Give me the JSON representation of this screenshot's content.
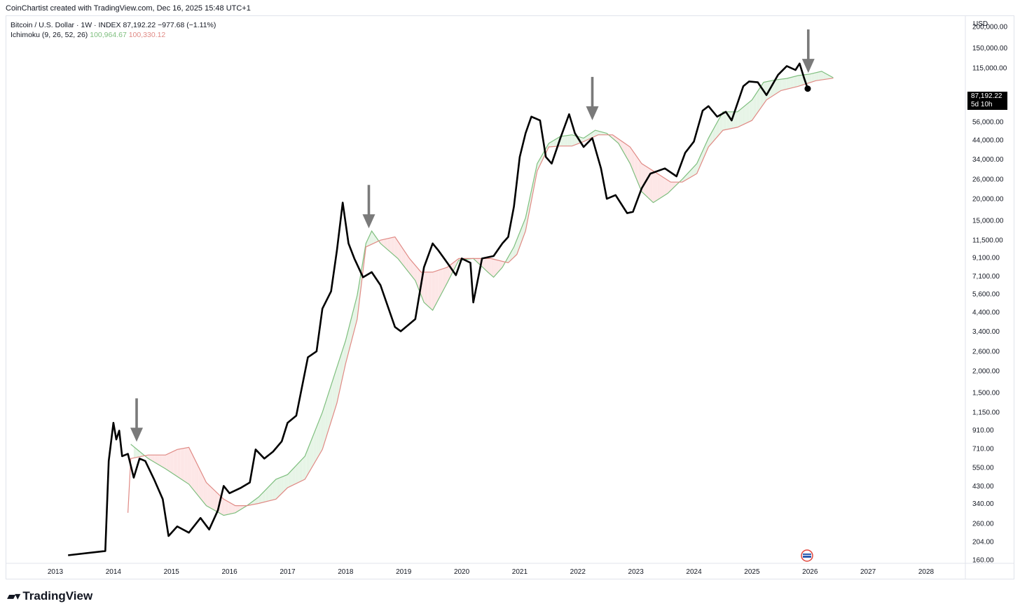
{
  "header": {
    "credit": "CoinChartist created with TradingView.com, Dec 16, 2025 15:48 UTC+1"
  },
  "legend": {
    "symbol_line": "Bitcoin / U.S. Dollar · 1W · INDEX",
    "last": "87,192.22",
    "change": "−977.68 (−1.11%)",
    "indicator": "Ichimoku (9, 26, 52, 26)",
    "span_a_value": "100,964.67",
    "span_b_value": "100,330.12"
  },
  "currency": "USD",
  "price_tag": {
    "price": "87,192.22",
    "countdown": "5d 10h"
  },
  "logo": {
    "text": "TradingView"
  },
  "chart_data": {
    "type": "line",
    "scale": "log",
    "ylim": [
      160,
      200000
    ],
    "xlim": [
      2012.6,
      2028.9
    ],
    "y_ticks": [
      {
        "v": 200000,
        "label": "200,000.00"
      },
      {
        "v": 150000,
        "label": "150,000.00"
      },
      {
        "v": 115000,
        "label": "115,000.00"
      },
      {
        "v": 56000,
        "label": "56,000.00"
      },
      {
        "v": 44000,
        "label": "44,000.00"
      },
      {
        "v": 34000,
        "label": "34,000.00"
      },
      {
        "v": 26000,
        "label": "26,000.00"
      },
      {
        "v": 20000,
        "label": "20,000.00"
      },
      {
        "v": 15000,
        "label": "15,000.00"
      },
      {
        "v": 11500,
        "label": "11,500.00"
      },
      {
        "v": 9100,
        "label": "9,100.00"
      },
      {
        "v": 7100,
        "label": "7,100.00"
      },
      {
        "v": 5600,
        "label": "5,600.00"
      },
      {
        "v": 4400,
        "label": "4,400.00"
      },
      {
        "v": 3400,
        "label": "3,400.00"
      },
      {
        "v": 2600,
        "label": "2,600.00"
      },
      {
        "v": 2000,
        "label": "2,000.00"
      },
      {
        "v": 1500,
        "label": "1,500.00"
      },
      {
        "v": 1150,
        "label": "1,150.00"
      },
      {
        "v": 910,
        "label": "910.00"
      },
      {
        "v": 710,
        "label": "710.00"
      },
      {
        "v": 550,
        "label": "550.00"
      },
      {
        "v": 430,
        "label": "430.00"
      },
      {
        "v": 340,
        "label": "340.00"
      },
      {
        "v": 260,
        "label": "260.00"
      },
      {
        "v": 204,
        "label": "204.00"
      },
      {
        "v": 160,
        "label": "160.00"
      }
    ],
    "x_ticks": [
      "2013",
      "2014",
      "2015",
      "2016",
      "2017",
      "2018",
      "2019",
      "2020",
      "2021",
      "2022",
      "2023",
      "2024",
      "2025",
      "2026",
      "2027",
      "2028"
    ],
    "colors": {
      "price": "#000000",
      "span_a": "#7fbf7f",
      "span_b": "#e08a85",
      "bull_fill": "#e6f4e6",
      "bear_fill": "#fde6e6",
      "arrow": "#7a7a7a"
    },
    "series": [
      {
        "values": [
          [
            2013.22,
            170
          ],
          [
            2013.86,
            180
          ],
          [
            2013.92,
            600
          ],
          [
            2014.0,
            1000
          ],
          [
            2014.05,
            800
          ],
          [
            2014.1,
            900
          ],
          [
            2014.15,
            640
          ],
          [
            2014.25,
            660
          ],
          [
            2014.35,
            480
          ],
          [
            2014.45,
            620
          ],
          [
            2014.55,
            600
          ],
          [
            2014.7,
            470
          ],
          [
            2014.85,
            360
          ],
          [
            2014.95,
            220
          ],
          [
            2015.1,
            250
          ],
          [
            2015.3,
            230
          ],
          [
            2015.5,
            280
          ],
          [
            2015.65,
            240
          ],
          [
            2015.8,
            310
          ],
          [
            2015.9,
            430
          ],
          [
            2016.0,
            390
          ],
          [
            2016.2,
            420
          ],
          [
            2016.35,
            450
          ],
          [
            2016.45,
            700
          ],
          [
            2016.6,
            620
          ],
          [
            2016.75,
            680
          ],
          [
            2016.9,
            780
          ],
          [
            2017.0,
            1000
          ],
          [
            2017.15,
            1100
          ],
          [
            2017.35,
            2400
          ],
          [
            2017.5,
            2600
          ],
          [
            2017.6,
            4600
          ],
          [
            2017.75,
            5800
          ],
          [
            2017.85,
            10000
          ],
          [
            2017.95,
            19000
          ],
          [
            2018.05,
            11000
          ],
          [
            2018.15,
            9000
          ],
          [
            2018.3,
            7000
          ],
          [
            2018.45,
            7500
          ],
          [
            2018.6,
            6300
          ],
          [
            2018.85,
            3600
          ],
          [
            2018.95,
            3400
          ],
          [
            2019.2,
            4000
          ],
          [
            2019.35,
            8000
          ],
          [
            2019.5,
            11000
          ],
          [
            2019.6,
            10000
          ],
          [
            2019.75,
            8500
          ],
          [
            2019.9,
            7200
          ],
          [
            2020.0,
            9000
          ],
          [
            2020.15,
            8500
          ],
          [
            2020.2,
            5000
          ],
          [
            2020.35,
            9000
          ],
          [
            2020.55,
            9300
          ],
          [
            2020.7,
            11000
          ],
          [
            2020.8,
            12000
          ],
          [
            2020.9,
            18000
          ],
          [
            2021.0,
            35000
          ],
          [
            2021.1,
            48000
          ],
          [
            2021.2,
            60000
          ],
          [
            2021.35,
            57000
          ],
          [
            2021.45,
            35000
          ],
          [
            2021.55,
            32000
          ],
          [
            2021.7,
            45000
          ],
          [
            2021.85,
            62000
          ],
          [
            2021.95,
            48000
          ],
          [
            2022.1,
            40000
          ],
          [
            2022.25,
            45000
          ],
          [
            2022.4,
            30000
          ],
          [
            2022.5,
            20000
          ],
          [
            2022.65,
            21000
          ],
          [
            2022.85,
            16500
          ],
          [
            2022.95,
            16800
          ],
          [
            2023.1,
            23000
          ],
          [
            2023.25,
            28000
          ],
          [
            2023.5,
            30000
          ],
          [
            2023.7,
            27000
          ],
          [
            2023.85,
            37000
          ],
          [
            2024.0,
            43000
          ],
          [
            2024.15,
            65000
          ],
          [
            2024.25,
            69000
          ],
          [
            2024.4,
            60000
          ],
          [
            2024.55,
            64000
          ],
          [
            2024.65,
            57000
          ],
          [
            2024.85,
            90000
          ],
          [
            2024.95,
            96000
          ],
          [
            2025.1,
            95000
          ],
          [
            2025.25,
            80000
          ],
          [
            2025.45,
            105000
          ],
          [
            2025.6,
            118000
          ],
          [
            2025.75,
            112000
          ],
          [
            2025.82,
            122000
          ],
          [
            2025.9,
            100000
          ],
          [
            2025.96,
            87192
          ]
        ]
      },
      {
        "name": "100,964.67",
        "values": [
          [
            2014.3,
            750
          ],
          [
            2014.6,
            620
          ],
          [
            2014.9,
            540
          ],
          [
            2015.3,
            440
          ],
          [
            2015.6,
            330
          ],
          [
            2015.9,
            290
          ],
          [
            2016.1,
            300
          ],
          [
            2016.3,
            330
          ],
          [
            2016.5,
            370
          ],
          [
            2016.8,
            470
          ],
          [
            2017.0,
            500
          ],
          [
            2017.3,
            640
          ],
          [
            2017.6,
            1150
          ],
          [
            2017.85,
            2100
          ],
          [
            2018.0,
            3000
          ],
          [
            2018.2,
            5500
          ],
          [
            2018.35,
            11000
          ],
          [
            2018.45,
            13000
          ],
          [
            2018.6,
            11000
          ],
          [
            2018.9,
            9000
          ],
          [
            2019.2,
            6700
          ],
          [
            2019.35,
            5000
          ],
          [
            2019.5,
            4500
          ],
          [
            2019.75,
            6500
          ],
          [
            2019.95,
            8800
          ],
          [
            2020.2,
            9000
          ],
          [
            2020.45,
            7500
          ],
          [
            2020.55,
            7000
          ],
          [
            2020.7,
            8000
          ],
          [
            2020.9,
            10500
          ],
          [
            2021.1,
            15500
          ],
          [
            2021.3,
            32000
          ],
          [
            2021.5,
            42000
          ],
          [
            2021.7,
            46000
          ],
          [
            2021.9,
            47000
          ],
          [
            2022.1,
            45000
          ],
          [
            2022.3,
            50000
          ],
          [
            2022.5,
            48000
          ],
          [
            2022.7,
            42000
          ],
          [
            2022.9,
            32000
          ],
          [
            2023.1,
            22000
          ],
          [
            2023.3,
            19000
          ],
          [
            2023.55,
            21500
          ],
          [
            2023.8,
            26000
          ],
          [
            2024.05,
            32000
          ],
          [
            2024.25,
            45000
          ],
          [
            2024.5,
            64000
          ],
          [
            2024.75,
            64000
          ],
          [
            2025.0,
            75000
          ],
          [
            2025.2,
            95000
          ],
          [
            2025.4,
            98000
          ],
          [
            2025.6,
            100000
          ],
          [
            2025.8,
            104000
          ],
          [
            2026.0,
            106000
          ],
          [
            2026.2,
            110000
          ],
          [
            2026.4,
            100965
          ]
        ]
      },
      {
        "name": "100,330.12",
        "values": [
          [
            2014.25,
            300
          ],
          [
            2014.3,
            620
          ],
          [
            2014.6,
            650
          ],
          [
            2014.9,
            650
          ],
          [
            2015.1,
            700
          ],
          [
            2015.3,
            720
          ],
          [
            2015.6,
            450
          ],
          [
            2015.9,
            360
          ],
          [
            2016.1,
            330
          ],
          [
            2016.3,
            330
          ],
          [
            2016.5,
            340
          ],
          [
            2016.8,
            360
          ],
          [
            2017.0,
            420
          ],
          [
            2017.3,
            470
          ],
          [
            2017.6,
            700
          ],
          [
            2017.85,
            1300
          ],
          [
            2018.0,
            2200
          ],
          [
            2018.2,
            4000
          ],
          [
            2018.35,
            10500
          ],
          [
            2018.6,
            11500
          ],
          [
            2018.85,
            12000
          ],
          [
            2019.1,
            9000
          ],
          [
            2019.3,
            7500
          ],
          [
            2019.5,
            7500
          ],
          [
            2019.75,
            8000
          ],
          [
            2019.95,
            9000
          ],
          [
            2020.2,
            9000
          ],
          [
            2020.5,
            9000
          ],
          [
            2020.8,
            8500
          ],
          [
            2020.95,
            9500
          ],
          [
            2021.1,
            13000
          ],
          [
            2021.3,
            29000
          ],
          [
            2021.5,
            40000
          ],
          [
            2021.7,
            40500
          ],
          [
            2021.9,
            40500
          ],
          [
            2022.1,
            43000
          ],
          [
            2022.35,
            47000
          ],
          [
            2022.6,
            47000
          ],
          [
            2022.9,
            40000
          ],
          [
            2023.1,
            32000
          ],
          [
            2023.3,
            29000
          ],
          [
            2023.6,
            25000
          ],
          [
            2023.8,
            25000
          ],
          [
            2024.05,
            28000
          ],
          [
            2024.25,
            40000
          ],
          [
            2024.5,
            50000
          ],
          [
            2024.75,
            52000
          ],
          [
            2025.0,
            57000
          ],
          [
            2025.25,
            75000
          ],
          [
            2025.5,
            85000
          ],
          [
            2025.8,
            90000
          ],
          [
            2026.1,
            97000
          ],
          [
            2026.4,
            100330
          ]
        ]
      }
    ],
    "arrows_at": [
      [
        2014.4,
        720
      ],
      [
        2018.4,
        12500
      ],
      [
        2022.25,
        53000
      ],
      [
        2025.97,
        100000
      ]
    ]
  }
}
